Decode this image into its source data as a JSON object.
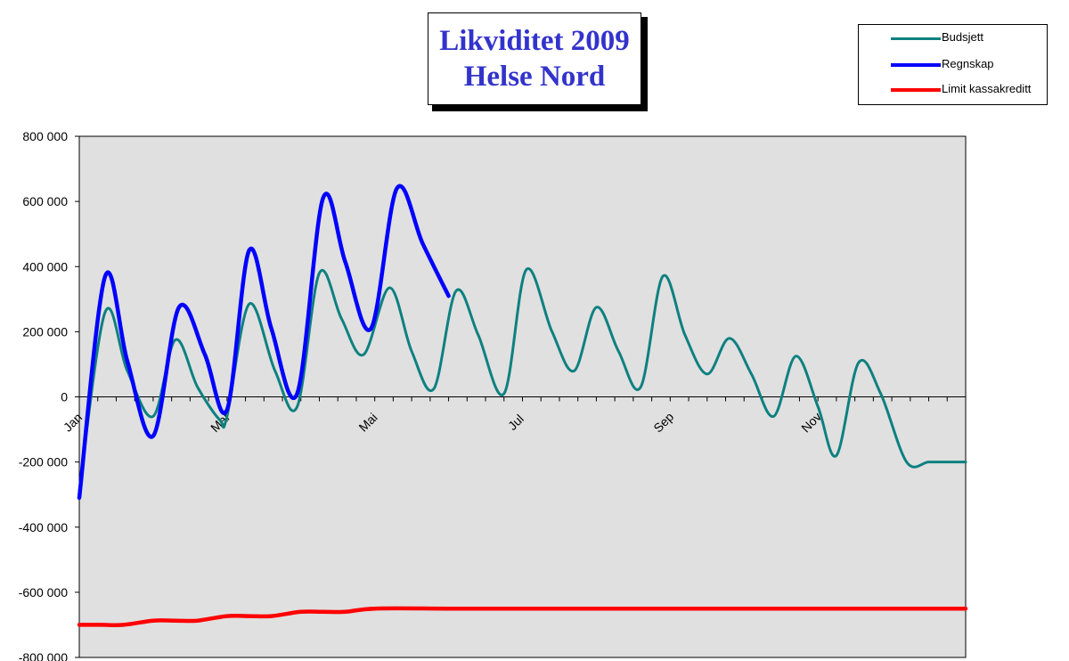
{
  "chart_data": {
    "type": "line",
    "title": [
      "Likviditet 2009",
      "Helse Nord"
    ],
    "ylim": [
      -800000,
      800000
    ],
    "y_ticks": [
      "-800 000",
      "-600 000",
      "-400 000",
      "-200 000",
      "0",
      "200 000",
      "400 000",
      "600 000",
      "800 000"
    ],
    "y_tick_values": [
      -800000,
      -600000,
      -400000,
      -200000,
      0,
      200000,
      400000,
      600000,
      800000
    ],
    "x_tick_labels": [
      "Jan",
      "Mar",
      "Mai",
      "Jul",
      "Sep",
      "Nov"
    ],
    "x_tick_positions": [
      0,
      2,
      4,
      6,
      8,
      10
    ],
    "x_range": [
      0,
      12
    ],
    "grid": false,
    "plot_background": "#e0e0e0",
    "legend_position": "top-right",
    "series": [
      {
        "name": "Budsjett",
        "color": "#0e8080",
        "x": [
          0,
          0.35,
          0.65,
          1.0,
          1.3,
          1.6,
          1.9,
          2.0,
          2.3,
          2.65,
          2.95,
          3.25,
          3.55,
          3.85,
          4.2,
          4.5,
          4.8,
          5.1,
          5.4,
          5.75,
          6.05,
          6.4,
          6.7,
          7.0,
          7.3,
          7.6,
          7.9,
          8.2,
          8.5,
          8.8,
          9.1,
          9.4,
          9.7,
          10.0,
          10.25,
          10.55,
          10.85,
          11.2,
          11.5,
          11.75,
          12.0
        ],
        "values": [
          -290000,
          260000,
          80000,
          -60000,
          175000,
          30000,
          -70000,
          -60000,
          285000,
          80000,
          -30000,
          380000,
          240000,
          130000,
          335000,
          140000,
          25000,
          325000,
          190000,
          10000,
          390000,
          200000,
          80000,
          275000,
          140000,
          30000,
          370000,
          190000,
          70000,
          180000,
          70000,
          -60000,
          125000,
          -30000,
          -180000,
          105000,
          10000,
          -200000,
          -200000,
          -200000,
          -200000
        ]
      },
      {
        "name": "Regnskap",
        "color": "#0000ff",
        "x": [
          0,
          0.35,
          0.65,
          1.0,
          1.35,
          1.7,
          2.0,
          2.3,
          2.6,
          2.95,
          3.3,
          3.6,
          3.95,
          4.3,
          4.65,
          5.0
        ],
        "values": [
          -310000,
          370000,
          110000,
          -120000,
          275000,
          130000,
          -40000,
          450000,
          210000,
          10000,
          610000,
          415000,
          210000,
          640000,
          470000,
          310000
        ]
      },
      {
        "name": "Limit kassakreditt",
        "color": "#ff0000",
        "x": [
          0,
          0.3,
          0.6,
          1.0,
          1.3,
          1.6,
          2.0,
          2.3,
          2.6,
          3.0,
          3.3,
          3.6,
          4.0,
          5.0,
          6.0,
          7.0,
          8.0,
          9.0,
          10.0,
          11.0,
          12.0
        ],
        "values": [
          -700000,
          -700000,
          -700000,
          -687000,
          -687000,
          -687000,
          -673000,
          -673000,
          -673000,
          -660000,
          -660000,
          -660000,
          -650000,
          -650000,
          -650000,
          -650000,
          -650000,
          -650000,
          -650000,
          -650000,
          -650000
        ]
      }
    ]
  }
}
